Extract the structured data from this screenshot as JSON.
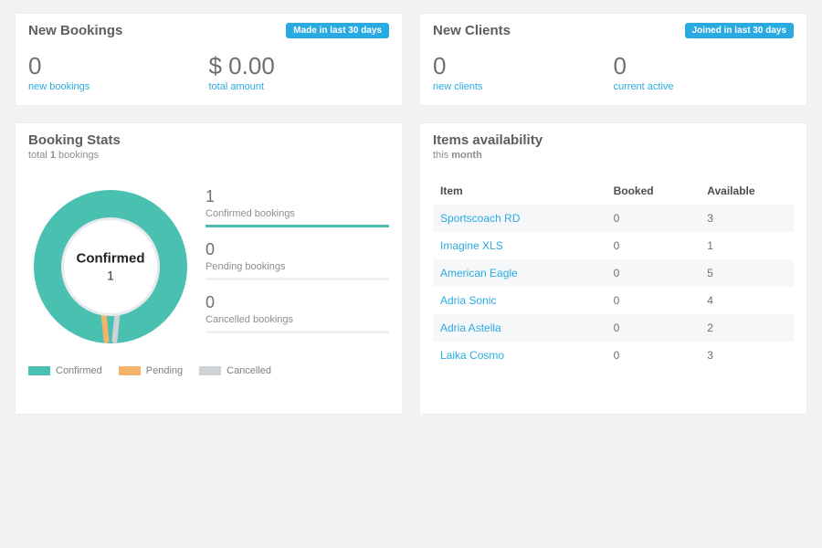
{
  "colors": {
    "accent": "#29abe2",
    "confirmed": "#49c0b0",
    "pending": "#f4b26b",
    "cancelled": "#cfd3d6",
    "panel_bg": "#ffffff",
    "page_bg": "#f1f2f3",
    "text_muted": "#8a8f93",
    "text_main": "#5a5f63"
  },
  "newBookings": {
    "title": "New Bookings",
    "badge": "Made in last 30 days",
    "stats": [
      {
        "value": "0",
        "label": "new bookings"
      },
      {
        "value": "$ 0.00",
        "label": "total amount"
      }
    ]
  },
  "newClients": {
    "title": "New Clients",
    "badge": "Joined in last 30 days",
    "stats": [
      {
        "value": "0",
        "label": "new clients"
      },
      {
        "value": "0",
        "label": "current active"
      }
    ]
  },
  "bookingStats": {
    "title": "Booking Stats",
    "subtitle_prefix": "total ",
    "total": "1",
    "subtitle_suffix": " bookings",
    "chart": {
      "type": "donut",
      "center_label": "Confirmed",
      "center_value": "1",
      "ring_color": "#49c0b0",
      "ring_width": 22,
      "inner_stroke": "#e8eaeb",
      "tick_colors": [
        "#f4b26b",
        "#cfd3d6"
      ]
    },
    "bars": [
      {
        "value": "1",
        "label": "Confirmed bookings",
        "pct": 100,
        "color": "#49c0b0"
      },
      {
        "value": "0",
        "label": "Pending bookings",
        "pct": 0,
        "color": "#f4b26b"
      },
      {
        "value": "0",
        "label": "Cancelled bookings",
        "pct": 0,
        "color": "#cfd3d6"
      }
    ],
    "legend": [
      {
        "label": "Confirmed",
        "color": "#49c0b0"
      },
      {
        "label": "Pending",
        "color": "#f4b26b"
      },
      {
        "label": "Cancelled",
        "color": "#cfd3d6"
      }
    ]
  },
  "availability": {
    "title": "Items availability",
    "subtitle_prefix": "this ",
    "subtitle_bold": "month",
    "columns": [
      "Item",
      "Booked",
      "Available"
    ],
    "rows": [
      {
        "item": "Sportscoach RD",
        "booked": "0",
        "available": "3"
      },
      {
        "item": "Imagine XLS",
        "booked": "0",
        "available": "1"
      },
      {
        "item": "American Eagle",
        "booked": "0",
        "available": "5"
      },
      {
        "item": "Adria Sonic",
        "booked": "0",
        "available": "4"
      },
      {
        "item": "Adria Astella",
        "booked": "0",
        "available": "2"
      },
      {
        "item": "Laika Cosmo",
        "booked": "0",
        "available": "3"
      }
    ]
  }
}
